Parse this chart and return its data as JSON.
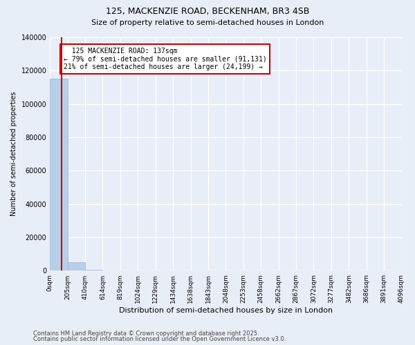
{
  "title": "125, MACKENZIE ROAD, BECKENHAM, BR3 4SB",
  "subtitle": "Size of property relative to semi-detached houses in London",
  "xlabel": "Distribution of semi-detached houses by size in London",
  "ylabel": "Number of semi-detached properties",
  "bar_values": [
    115330,
    5200,
    800,
    300,
    150,
    80,
    50,
    30,
    20,
    15,
    10,
    8,
    6,
    5,
    4,
    3,
    2,
    2,
    1,
    1
  ],
  "bar_edges": [
    0,
    205,
    410,
    614,
    819,
    1024,
    1229,
    1434,
    1638,
    1843,
    2048,
    2253,
    2458,
    2662,
    2867,
    3072,
    3277,
    3482,
    3686,
    3891,
    4096
  ],
  "bar_color": "#b8cfe8",
  "bar_edgecolor": "#9ab5d8",
  "background_color": "#e8eef8",
  "grid_color": "#ffffff",
  "property_size": 137,
  "property_label": "125 MACKENZIE ROAD: 137sqm",
  "pct_smaller": 79,
  "pct_larger": 21,
  "n_smaller": 91131,
  "n_larger": 24199,
  "annotation_box_color": "#cc0000",
  "vline_color": "#cc0000",
  "ylim": [
    0,
    140000
  ],
  "yticks": [
    0,
    20000,
    40000,
    60000,
    80000,
    100000,
    120000,
    140000
  ],
  "footnote1": "Contains HM Land Registry data © Crown copyright and database right 2025.",
  "footnote2": "Contains public sector information licensed under the Open Government Licence v3.0."
}
